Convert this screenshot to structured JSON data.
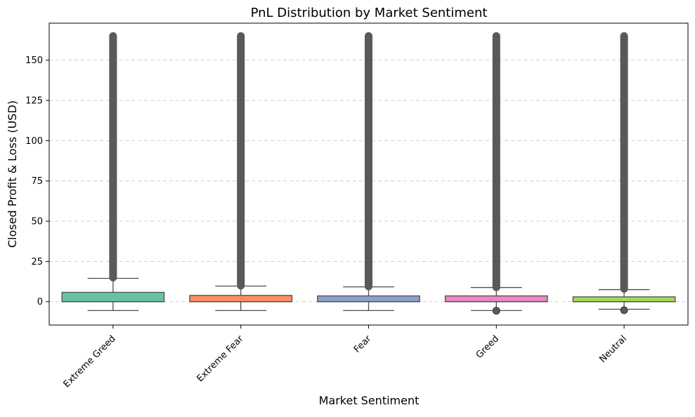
{
  "chart_data": {
    "type": "box",
    "title": "PnL Distribution by Market Sentiment",
    "xlabel": "Market Sentiment",
    "ylabel": "Closed Profit & Loss (USD)",
    "ylim": [
      -14.5,
      173
    ],
    "yticks": [
      0,
      25,
      50,
      75,
      100,
      125,
      150
    ],
    "grid": "y-dashed",
    "categories": [
      "Extreme Greed",
      "Extreme Fear",
      "Fear",
      "Greed",
      "Neutral"
    ],
    "series": [
      {
        "category": "Extreme Greed",
        "color": "#66c2a5",
        "whisker_low": -5.5,
        "q1": 0,
        "median": 0,
        "q3": 5.8,
        "whisker_high": 14.5,
        "outliers_high": [
          15,
          165
        ],
        "outliers_low": []
      },
      {
        "category": "Extreme Fear",
        "color": "#fc8d62",
        "whisker_low": -5.5,
        "q1": 0,
        "median": 0,
        "q3": 3.9,
        "whisker_high": 9.7,
        "outliers_high": [
          10,
          165
        ],
        "outliers_low": []
      },
      {
        "category": "Fear",
        "color": "#8da0cb",
        "whisker_low": -5.5,
        "q1": 0,
        "median": 0,
        "q3": 3.6,
        "whisker_high": 9.2,
        "outliers_high": [
          9.5,
          165
        ],
        "outliers_low": []
      },
      {
        "category": "Greed",
        "color": "#e78ac3",
        "whisker_low": -5.5,
        "q1": 0,
        "median": 0,
        "q3": 3.6,
        "whisker_high": 8.8,
        "outliers_high": [
          9,
          165
        ],
        "outliers_low": [
          -5.6
        ]
      },
      {
        "category": "Neutral",
        "color": "#a6d854",
        "whisker_low": -4.7,
        "q1": 0,
        "median": 0,
        "q3": 3.0,
        "whisker_high": 7.5,
        "outliers_high": [
          8,
          165
        ],
        "outliers_low": [
          -5.3
        ]
      }
    ],
    "outlier_color": "#595959",
    "line_color": "#4d4d4d"
  }
}
